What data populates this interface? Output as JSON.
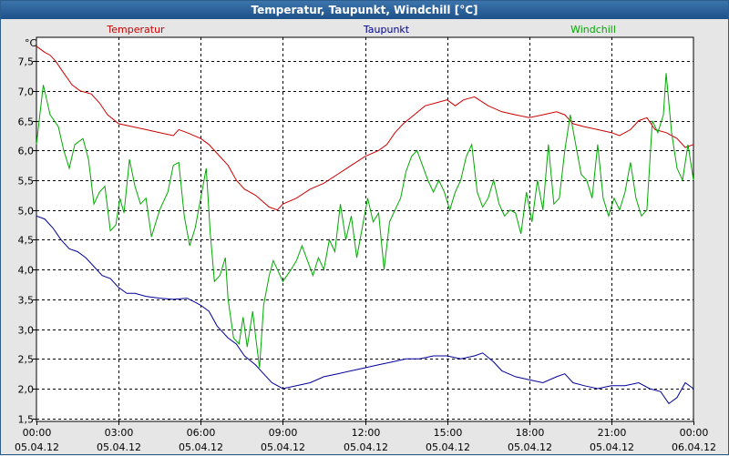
{
  "window": {
    "title": "Temperatur, Taupunkt, Windchill [°C]"
  },
  "chart_data": {
    "type": "line",
    "title": "Temperatur, Taupunkt, Windchill [°C]",
    "ylabel": "°C",
    "xlabel": "",
    "ylim": [
      1.45,
      7.9
    ],
    "xlim": [
      0,
      24
    ],
    "grid": true,
    "legend_position": "top",
    "y_ticks": [
      "1,5",
      "2,0",
      "2,5",
      "3,0",
      "3,5",
      "4,0",
      "4,5",
      "5,0",
      "5,5",
      "6,0",
      "6,5",
      "7,0",
      "7,5"
    ],
    "y_tick_values": [
      1.5,
      2.0,
      2.5,
      3.0,
      3.5,
      4.0,
      4.5,
      5.0,
      5.5,
      6.0,
      6.5,
      7.0,
      7.5
    ],
    "x_ticks": [
      {
        "h": 0,
        "time": "00:00",
        "date": "05.04.12"
      },
      {
        "h": 3,
        "time": "03:00",
        "date": "05.04.12"
      },
      {
        "h": 6,
        "time": "06:00",
        "date": "05.04.12"
      },
      {
        "h": 9,
        "time": "09:00",
        "date": "05.04.12"
      },
      {
        "h": 12,
        "time": "12:00",
        "date": "05.04.12"
      },
      {
        "h": 15,
        "time": "15:00",
        "date": "05.04.12"
      },
      {
        "h": 18,
        "time": "18:00",
        "date": "05.04.12"
      },
      {
        "h": 21,
        "time": "21:00",
        "date": "05.04.12"
      },
      {
        "h": 24,
        "time": "00:00",
        "date": "06.04.12"
      }
    ],
    "series": [
      {
        "name": "Temperatur",
        "color": "#cc0000",
        "points": [
          [
            0,
            7.75
          ],
          [
            0.3,
            7.65
          ],
          [
            0.5,
            7.6
          ],
          [
            0.7,
            7.5
          ],
          [
            1.0,
            7.3
          ],
          [
            1.3,
            7.1
          ],
          [
            1.6,
            7.0
          ],
          [
            2.0,
            6.95
          ],
          [
            2.3,
            6.8
          ],
          [
            2.6,
            6.6
          ],
          [
            3.0,
            6.45
          ],
          [
            3.5,
            6.4
          ],
          [
            4.0,
            6.35
          ],
          [
            4.5,
            6.3
          ],
          [
            5.0,
            6.25
          ],
          [
            5.2,
            6.35
          ],
          [
            5.5,
            6.3
          ],
          [
            6.0,
            6.2
          ],
          [
            6.3,
            6.1
          ],
          [
            6.6,
            5.95
          ],
          [
            7.0,
            5.75
          ],
          [
            7.3,
            5.5
          ],
          [
            7.6,
            5.35
          ],
          [
            8.0,
            5.25
          ],
          [
            8.5,
            5.05
          ],
          [
            8.8,
            5.0
          ],
          [
            9.0,
            5.1
          ],
          [
            9.5,
            5.2
          ],
          [
            10.0,
            5.35
          ],
          [
            10.5,
            5.45
          ],
          [
            11.0,
            5.6
          ],
          [
            11.5,
            5.75
          ],
          [
            12.0,
            5.9
          ],
          [
            12.5,
            6.0
          ],
          [
            12.8,
            6.1
          ],
          [
            13.1,
            6.3
          ],
          [
            13.4,
            6.45
          ],
          [
            13.8,
            6.6
          ],
          [
            14.2,
            6.75
          ],
          [
            14.6,
            6.8
          ],
          [
            15.0,
            6.85
          ],
          [
            15.3,
            6.75
          ],
          [
            15.6,
            6.85
          ],
          [
            16.0,
            6.9
          ],
          [
            16.5,
            6.75
          ],
          [
            17.0,
            6.65
          ],
          [
            17.5,
            6.6
          ],
          [
            18.0,
            6.55
          ],
          [
            18.5,
            6.6
          ],
          [
            19.0,
            6.65
          ],
          [
            19.3,
            6.6
          ],
          [
            19.6,
            6.45
          ],
          [
            20.0,
            6.4
          ],
          [
            20.5,
            6.35
          ],
          [
            21.0,
            6.3
          ],
          [
            21.3,
            6.25
          ],
          [
            21.7,
            6.35
          ],
          [
            22.0,
            6.5
          ],
          [
            22.3,
            6.55
          ],
          [
            22.6,
            6.35
          ],
          [
            23.0,
            6.3
          ],
          [
            23.4,
            6.2
          ],
          [
            23.7,
            6.05
          ],
          [
            24.0,
            6.1
          ]
        ]
      },
      {
        "name": "Taupunkt",
        "color": "#000099",
        "points": [
          [
            0,
            4.9
          ],
          [
            0.3,
            4.85
          ],
          [
            0.6,
            4.7
          ],
          [
            0.9,
            4.5
          ],
          [
            1.2,
            4.35
          ],
          [
            1.5,
            4.3
          ],
          [
            1.8,
            4.2
          ],
          [
            2.1,
            4.05
          ],
          [
            2.4,
            3.9
          ],
          [
            2.7,
            3.85
          ],
          [
            3.0,
            3.7
          ],
          [
            3.3,
            3.6
          ],
          [
            3.6,
            3.6
          ],
          [
            4.0,
            3.55
          ],
          [
            4.5,
            3.52
          ],
          [
            5.0,
            3.5
          ],
          [
            5.5,
            3.52
          ],
          [
            5.8,
            3.45
          ],
          [
            6.0,
            3.4
          ],
          [
            6.3,
            3.3
          ],
          [
            6.6,
            3.05
          ],
          [
            7.0,
            2.85
          ],
          [
            7.3,
            2.75
          ],
          [
            7.6,
            2.55
          ],
          [
            8.0,
            2.4
          ],
          [
            8.3,
            2.25
          ],
          [
            8.6,
            2.1
          ],
          [
            9.0,
            2.0
          ],
          [
            9.5,
            2.05
          ],
          [
            10.0,
            2.1
          ],
          [
            10.5,
            2.2
          ],
          [
            11.0,
            2.25
          ],
          [
            11.5,
            2.3
          ],
          [
            12.0,
            2.35
          ],
          [
            12.5,
            2.4
          ],
          [
            13.0,
            2.45
          ],
          [
            13.5,
            2.5
          ],
          [
            14.0,
            2.5
          ],
          [
            14.5,
            2.55
          ],
          [
            15.0,
            2.55
          ],
          [
            15.5,
            2.5
          ],
          [
            16.0,
            2.55
          ],
          [
            16.3,
            2.6
          ],
          [
            16.7,
            2.45
          ],
          [
            17.0,
            2.3
          ],
          [
            17.5,
            2.2
          ],
          [
            18.0,
            2.15
          ],
          [
            18.5,
            2.1
          ],
          [
            19.0,
            2.2
          ],
          [
            19.3,
            2.25
          ],
          [
            19.6,
            2.1
          ],
          [
            20.0,
            2.05
          ],
          [
            20.5,
            2.0
          ],
          [
            21.0,
            2.05
          ],
          [
            21.5,
            2.05
          ],
          [
            22.0,
            2.1
          ],
          [
            22.4,
            2.0
          ],
          [
            22.8,
            1.95
          ],
          [
            23.1,
            1.75
          ],
          [
            23.4,
            1.85
          ],
          [
            23.7,
            2.1
          ],
          [
            24.0,
            2.0
          ]
        ]
      },
      {
        "name": "Windchill",
        "color": "#00aa00",
        "points": [
          [
            0,
            6.1
          ],
          [
            0.25,
            7.1
          ],
          [
            0.5,
            6.6
          ],
          [
            0.8,
            6.4
          ],
          [
            1.0,
            6.0
          ],
          [
            1.2,
            5.7
          ],
          [
            1.4,
            6.1
          ],
          [
            1.7,
            6.2
          ],
          [
            1.9,
            5.85
          ],
          [
            2.1,
            5.1
          ],
          [
            2.3,
            5.3
          ],
          [
            2.5,
            5.4
          ],
          [
            2.7,
            4.65
          ],
          [
            2.9,
            4.75
          ],
          [
            3.05,
            5.2
          ],
          [
            3.2,
            4.95
          ],
          [
            3.4,
            5.85
          ],
          [
            3.6,
            5.4
          ],
          [
            3.8,
            5.1
          ],
          [
            4.0,
            5.2
          ],
          [
            4.2,
            4.55
          ],
          [
            4.5,
            5.0
          ],
          [
            4.8,
            5.3
          ],
          [
            5.0,
            5.75
          ],
          [
            5.2,
            5.8
          ],
          [
            5.4,
            4.9
          ],
          [
            5.6,
            4.4
          ],
          [
            5.8,
            4.7
          ],
          [
            6.0,
            5.2
          ],
          [
            6.2,
            5.7
          ],
          [
            6.35,
            4.6
          ],
          [
            6.5,
            3.8
          ],
          [
            6.7,
            3.9
          ],
          [
            6.9,
            4.2
          ],
          [
            7.0,
            3.5
          ],
          [
            7.2,
            2.85
          ],
          [
            7.4,
            2.75
          ],
          [
            7.55,
            3.2
          ],
          [
            7.7,
            2.7
          ],
          [
            7.9,
            3.3
          ],
          [
            8.0,
            2.9
          ],
          [
            8.15,
            2.35
          ],
          [
            8.3,
            3.4
          ],
          [
            8.5,
            3.9
          ],
          [
            8.65,
            4.15
          ],
          [
            8.8,
            4.0
          ],
          [
            9.0,
            3.8
          ],
          [
            9.3,
            4.0
          ],
          [
            9.5,
            4.15
          ],
          [
            9.7,
            4.4
          ],
          [
            9.9,
            4.15
          ],
          [
            10.1,
            3.9
          ],
          [
            10.3,
            4.2
          ],
          [
            10.5,
            4.0
          ],
          [
            10.7,
            4.5
          ],
          [
            10.9,
            4.3
          ],
          [
            11.1,
            5.1
          ],
          [
            11.3,
            4.5
          ],
          [
            11.5,
            4.9
          ],
          [
            11.7,
            4.2
          ],
          [
            11.9,
            4.7
          ],
          [
            12.1,
            5.2
          ],
          [
            12.3,
            4.8
          ],
          [
            12.5,
            4.95
          ],
          [
            12.7,
            4.0
          ],
          [
            12.9,
            4.8
          ],
          [
            13.1,
            5.0
          ],
          [
            13.3,
            5.2
          ],
          [
            13.5,
            5.65
          ],
          [
            13.7,
            5.9
          ],
          [
            13.9,
            6.0
          ],
          [
            14.1,
            5.75
          ],
          [
            14.3,
            5.5
          ],
          [
            14.5,
            5.3
          ],
          [
            14.7,
            5.5
          ],
          [
            14.9,
            5.3
          ],
          [
            15.1,
            5.0
          ],
          [
            15.3,
            5.3
          ],
          [
            15.5,
            5.5
          ],
          [
            15.7,
            5.9
          ],
          [
            15.9,
            6.1
          ],
          [
            16.1,
            5.3
          ],
          [
            16.3,
            5.05
          ],
          [
            16.5,
            5.2
          ],
          [
            16.7,
            5.5
          ],
          [
            16.9,
            5.1
          ],
          [
            17.1,
            4.9
          ],
          [
            17.3,
            5.0
          ],
          [
            17.5,
            4.95
          ],
          [
            17.7,
            4.6
          ],
          [
            17.9,
            5.3
          ],
          [
            18.1,
            4.8
          ],
          [
            18.3,
            5.5
          ],
          [
            18.5,
            5.0
          ],
          [
            18.7,
            6.1
          ],
          [
            18.9,
            5.1
          ],
          [
            19.1,
            5.2
          ],
          [
            19.3,
            6.0
          ],
          [
            19.5,
            6.6
          ],
          [
            19.7,
            6.1
          ],
          [
            19.9,
            5.6
          ],
          [
            20.1,
            5.5
          ],
          [
            20.3,
            5.2
          ],
          [
            20.5,
            6.1
          ],
          [
            20.7,
            5.2
          ],
          [
            20.9,
            4.9
          ],
          [
            21.1,
            5.2
          ],
          [
            21.3,
            5.0
          ],
          [
            21.5,
            5.3
          ],
          [
            21.7,
            5.8
          ],
          [
            21.9,
            5.2
          ],
          [
            22.1,
            4.9
          ],
          [
            22.3,
            5.0
          ],
          [
            22.5,
            6.5
          ],
          [
            22.7,
            6.3
          ],
          [
            22.9,
            6.6
          ],
          [
            23.0,
            7.3
          ],
          [
            23.2,
            6.3
          ],
          [
            23.4,
            5.7
          ],
          [
            23.6,
            5.5
          ],
          [
            23.8,
            6.1
          ],
          [
            24.0,
            5.5
          ]
        ]
      }
    ]
  }
}
